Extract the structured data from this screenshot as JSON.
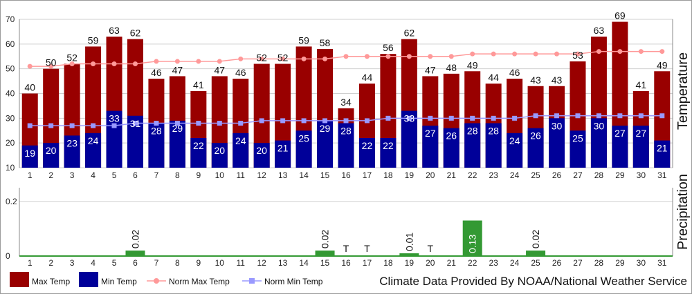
{
  "chart_data": [
    {
      "type": "bar",
      "ylabel": "Temperature",
      "ylim": [
        10,
        70
      ],
      "yticks": [
        10,
        20,
        30,
        40,
        50,
        60,
        70
      ],
      "categories": [
        "1",
        "2",
        "3",
        "4",
        "5",
        "6",
        "7",
        "8",
        "9",
        "10",
        "11",
        "12",
        "13",
        "14",
        "15",
        "16",
        "17",
        "18",
        "19",
        "20",
        "21",
        "22",
        "23",
        "24",
        "25",
        "26",
        "27",
        "28",
        "29",
        "30",
        "31"
      ],
      "series": [
        {
          "name": "Max Temp",
          "type": "bar",
          "color": "#990000",
          "values": [
            40,
            50,
            52,
            59,
            63,
            62,
            46,
            47,
            41,
            47,
            46,
            52,
            52,
            59,
            58,
            34,
            44,
            56,
            62,
            47,
            48,
            49,
            44,
            46,
            43,
            43,
            53,
            63,
            69,
            41,
            49
          ]
        },
        {
          "name": "Min Temp",
          "type": "bar",
          "color": "#000099",
          "values": [
            19,
            20,
            23,
            24,
            33,
            31,
            28,
            29,
            22,
            20,
            24,
            20,
            21,
            25,
            29,
            28,
            22,
            22,
            33,
            27,
            26,
            28,
            28,
            24,
            26,
            30,
            25,
            30,
            27,
            27,
            21
          ]
        },
        {
          "name": "Norm Max Temp",
          "type": "line",
          "color": "#ff9999",
          "values": [
            51,
            51,
            52,
            52,
            52,
            52,
            53,
            53,
            53,
            53,
            54,
            54,
            54,
            54,
            54,
            55,
            55,
            55,
            55,
            55,
            55,
            56,
            56,
            56,
            56,
            56,
            56,
            57,
            57,
            57,
            57
          ]
        },
        {
          "name": "Norm Min Temp",
          "type": "line",
          "color": "#9999ff",
          "values": [
            27,
            27,
            27,
            27,
            27,
            28,
            28,
            28,
            28,
            28,
            28,
            29,
            29,
            29,
            29,
            29,
            29,
            30,
            30,
            30,
            30,
            30,
            30,
            30,
            31,
            31,
            31,
            31,
            31,
            31,
            31
          ]
        }
      ],
      "grid": true
    },
    {
      "type": "bar",
      "ylabel": "Precipitation",
      "ylim": [
        0,
        0.25
      ],
      "yticks": [
        0,
        0.2
      ],
      "ytick_labels": [
        "0",
        "0.2"
      ],
      "categories": [
        "1",
        "2",
        "3",
        "4",
        "5",
        "6",
        "7",
        "8",
        "9",
        "10",
        "11",
        "12",
        "13",
        "14",
        "15",
        "16",
        "17",
        "18",
        "19",
        "20",
        "21",
        "22",
        "23",
        "24",
        "25",
        "26",
        "27",
        "28",
        "29",
        "30",
        "31"
      ],
      "series": [
        {
          "name": "Precipitation",
          "color": "#339933",
          "values": [
            0,
            0,
            0,
            0,
            0,
            0.02,
            0,
            0,
            0,
            0,
            0,
            0,
            0,
            0,
            0.02,
            0,
            0,
            0,
            0.01,
            0,
            0,
            0.13,
            0,
            0,
            0.02,
            0,
            0,
            0,
            0,
            0,
            0
          ],
          "labels": [
            "",
            "",
            "",
            "",
            "",
            "0.02",
            "",
            "",
            "",
            "",
            "",
            "",
            "",
            "",
            "0.02",
            "T",
            "T",
            "",
            "0.01",
            "T",
            "",
            "0.13",
            "",
            "",
            "0.02",
            "",
            "",
            "",
            "",
            "",
            ""
          ]
        }
      ],
      "grid": true
    }
  ],
  "legend": {
    "max_label": "Max Temp",
    "min_label": "Min Temp",
    "norm_max_label": "Norm Max Temp",
    "norm_min_label": "Norm Min Temp",
    "colors": {
      "max": "#990000",
      "min": "#000099",
      "norm_max": "#ff9999",
      "norm_min": "#9999ff"
    }
  },
  "credit": "Climate Data Provided By NOAA/National Weather Service"
}
